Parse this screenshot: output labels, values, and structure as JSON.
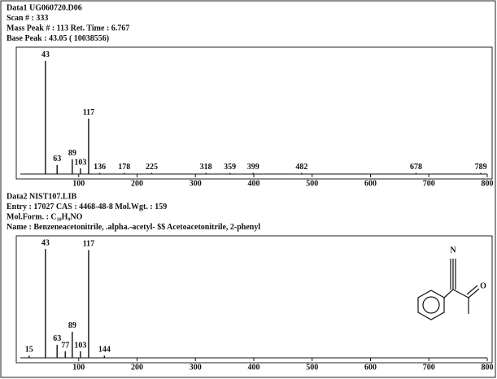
{
  "chart_data": [
    {
      "type": "bar",
      "header": [
        "Data1  UG060720.D06",
        "Scan #   : 333",
        "Mass Peak # : 113   Ret. Time : 6.767",
        "Base Peak  : 43.05  (  10038556)"
      ],
      "x": [
        43,
        63,
        89,
        103,
        117,
        136,
        178,
        225,
        318,
        359,
        399,
        482,
        678,
        789
      ],
      "values": [
        100,
        8,
        13,
        5,
        49,
        1,
        1,
        1,
        1,
        1,
        1,
        1,
        1,
        1
      ],
      "xlim": [
        0,
        800
      ],
      "xticks": [
        100,
        200,
        300,
        400,
        500,
        600,
        700,
        800
      ],
      "ylim": [
        0,
        112
      ],
      "color": "#111111"
    },
    {
      "type": "bar",
      "header": [
        "Data2  NIST107.LIB",
        "Entry   : 17027   CAS    :   4468-48-8     Mol.Wgt.  : 159",
        "Mol.Form. : C₁₀H₉NO",
        "Name     : Benzeneacetonitrile, .alpha.-acetyl- $$ Acetoacetonitrile, 2-phenyl"
      ],
      "x": [
        15,
        43,
        63,
        77,
        89,
        103,
        117,
        144
      ],
      "values": [
        2,
        100,
        12,
        6,
        24,
        6,
        99,
        2
      ],
      "xlim": [
        0,
        800
      ],
      "xticks": [
        100,
        200,
        300,
        400,
        500,
        600,
        700,
        800
      ],
      "ylim": [
        0,
        112
      ],
      "color": "#111111",
      "structure_labels": [
        "N",
        "O"
      ]
    }
  ]
}
